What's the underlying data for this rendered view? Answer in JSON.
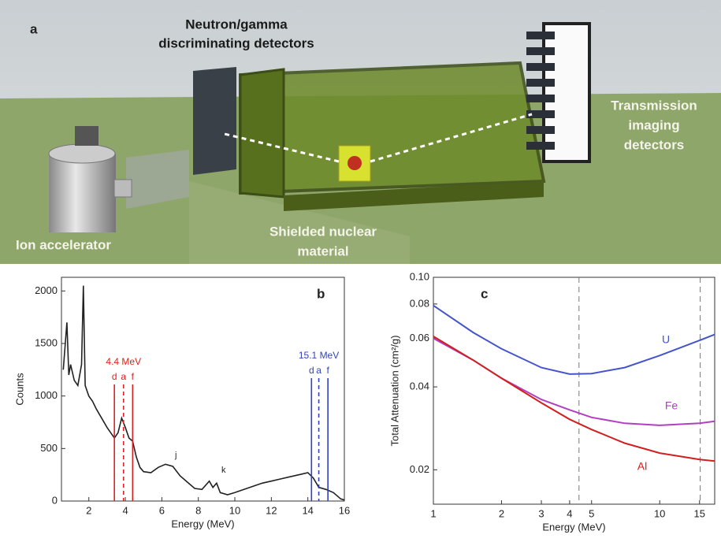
{
  "illustration": {
    "panel": "a",
    "labels": {
      "detectors": [
        "Neutron/gamma",
        "discriminating detectors"
      ],
      "transmission": [
        "Transmission",
        "imaging",
        "detectors"
      ],
      "accelerator": "Ion accelerator",
      "material": [
        "Shielded nuclear",
        "material"
      ]
    }
  },
  "chart_data": [
    {
      "type": "line",
      "panel": "b",
      "x_label": "Energy (MeV)",
      "y_label": "Counts",
      "x": [
        0.6,
        0.8,
        0.9,
        1.0,
        1.2,
        1.4,
        1.6,
        1.7,
        1.8,
        2.0,
        2.2,
        2.4,
        2.6,
        2.8,
        3.0,
        3.2,
        3.4,
        3.6,
        3.8,
        4.0,
        4.2,
        4.4,
        4.6,
        4.8,
        5.0,
        5.4,
        5.8,
        6.2,
        6.6,
        7.0,
        7.4,
        7.8,
        8.2,
        8.6,
        8.8,
        9.0,
        9.2,
        9.6,
        10.0,
        10.5,
        11.0,
        11.5,
        12.0,
        12.5,
        13.0,
        13.5,
        14.0,
        14.3,
        14.6,
        15.0,
        15.4,
        15.8,
        16.0
      ],
      "values": [
        1250,
        1700,
        1200,
        1300,
        1150,
        1100,
        1300,
        2050,
        1100,
        1000,
        950,
        880,
        820,
        760,
        700,
        650,
        600,
        650,
        790,
        700,
        600,
        570,
        420,
        320,
        280,
        270,
        320,
        350,
        330,
        240,
        180,
        120,
        110,
        190,
        130,
        170,
        80,
        60,
        80,
        110,
        140,
        170,
        190,
        210,
        230,
        250,
        270,
        220,
        130,
        110,
        80,
        20,
        10
      ],
      "color": "#222222",
      "xlim": [
        0.5,
        16
      ],
      "xticks": [
        2,
        4,
        6,
        8,
        10,
        12,
        14,
        16
      ],
      "ylim": [
        0,
        2130
      ],
      "yticks": [
        0,
        500,
        1000,
        1500,
        2000
      ],
      "marker_groups": [
        {
          "label": "4.4 MeV",
          "color": "#e02020",
          "lines": [
            {
              "x": 3.4,
              "label": "d",
              "dashed": false
            },
            {
              "x": 3.9,
              "label": "a",
              "dashed": true
            },
            {
              "x": 4.4,
              "label": "f",
              "dashed": false
            }
          ]
        },
        {
          "label": "15.1 MeV",
          "color": "#3344bb",
          "lines": [
            {
              "x": 14.2,
              "label": "d",
              "dashed": false
            },
            {
              "x": 14.6,
              "label": "a",
              "dashed": true
            },
            {
              "x": 15.1,
              "label": "f",
              "dashed": false
            }
          ]
        }
      ],
      "annotations": [
        "j",
        "k"
      ]
    },
    {
      "type": "line",
      "panel": "c",
      "x_label": "Energy (MeV)",
      "y_label": "Total Attenuation (cm²/g)",
      "log_x": true,
      "log_y": true,
      "x": [
        1,
        1.5,
        2,
        3,
        4,
        5,
        7,
        10,
        15,
        17.5
      ],
      "series": [
        {
          "name": "U",
          "color": "#4455cc",
          "values": [
            0.079,
            0.063,
            0.055,
            0.047,
            0.0445,
            0.0447,
            0.047,
            0.052,
            0.059,
            0.062
          ]
        },
        {
          "name": "Fe",
          "color": "#b040c0",
          "values": [
            0.06,
            0.05,
            0.043,
            0.036,
            0.033,
            0.031,
            0.0295,
            0.029,
            0.0295,
            0.03
          ]
        },
        {
          "name": "Al",
          "color": "#d02020",
          "values": [
            0.061,
            0.05,
            0.043,
            0.035,
            0.0305,
            0.028,
            0.025,
            0.023,
            0.0218,
            0.0215
          ]
        }
      ],
      "xlim": [
        1,
        17.5
      ],
      "xticks": [
        1,
        2,
        3,
        4,
        5,
        10,
        15
      ],
      "ylim": [
        0.015,
        0.1
      ],
      "yticks": [
        0.02,
        0.04,
        0.06,
        0.08,
        {
          "value": 0.1,
          "label": "0.10"
        }
      ],
      "vlines": [
        4.4,
        15.1
      ]
    }
  ]
}
